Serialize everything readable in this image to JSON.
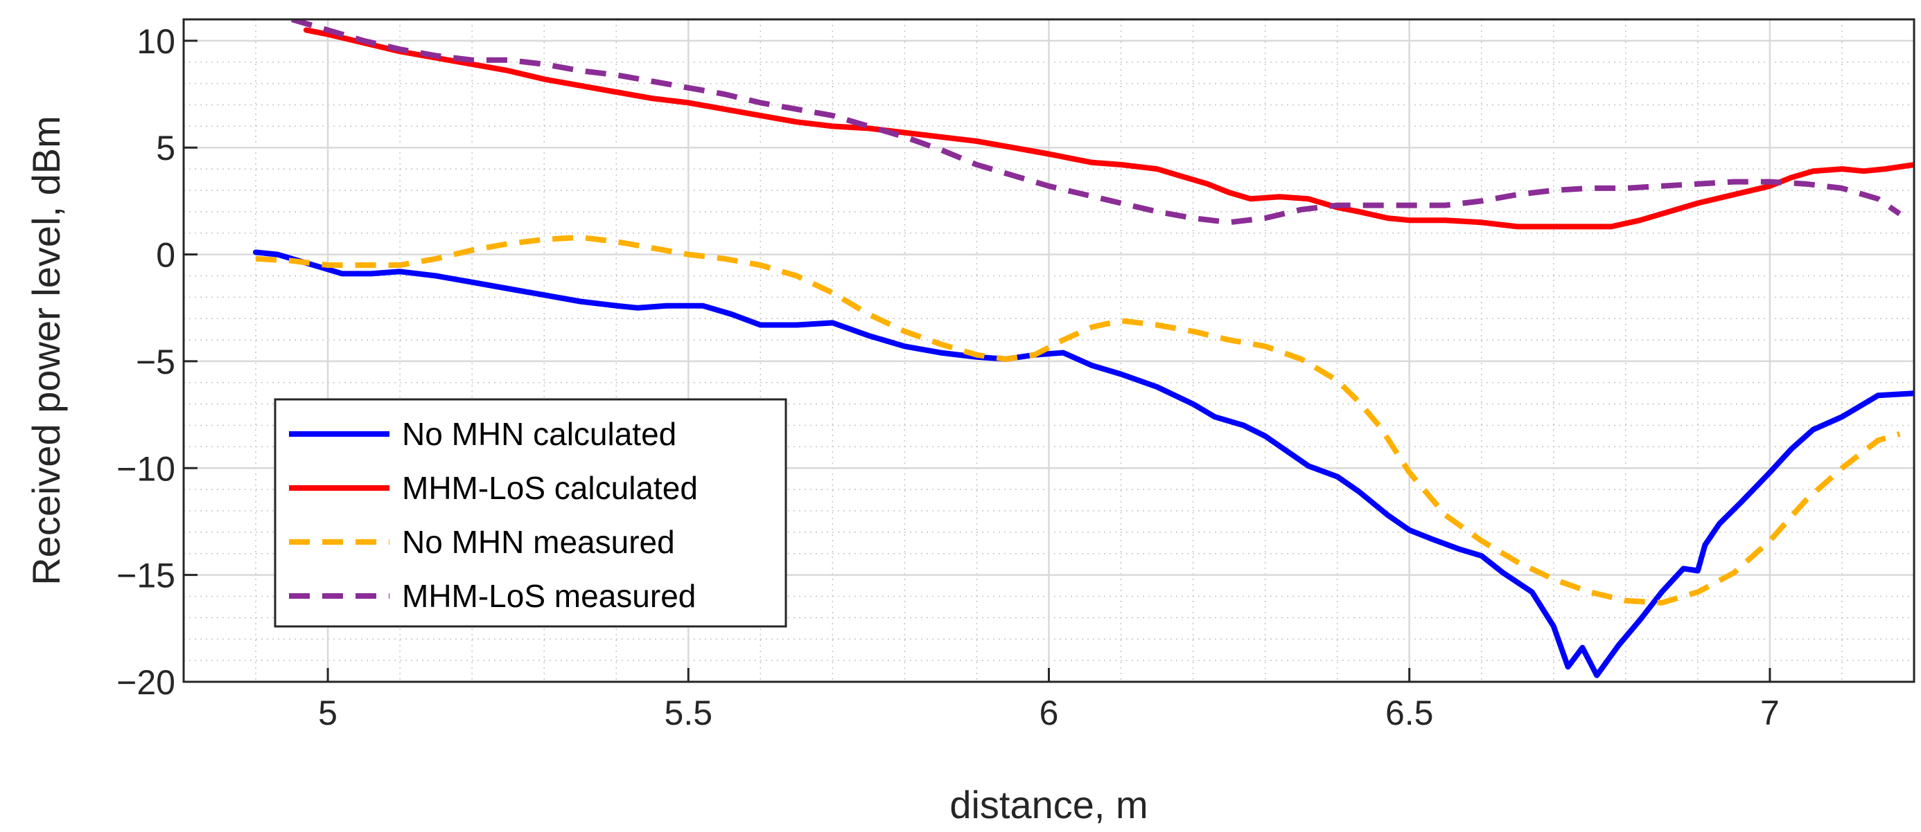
{
  "chart_data": {
    "type": "line",
    "title": "",
    "xlabel": "distance, m",
    "ylabel": "Received power level, dBm",
    "xlim": [
      4.8,
      7.2
    ],
    "ylim": [
      -20,
      11
    ],
    "xticks": [
      5,
      5.5,
      6,
      6.5,
      7
    ],
    "xtick_labels": [
      "5",
      "5.5",
      "6",
      "6.5",
      "7"
    ],
    "yticks": [
      10,
      5,
      0,
      -5,
      -10,
      -15,
      -20
    ],
    "ytick_labels": [
      "10",
      "5",
      "0",
      "−5",
      "−10",
      "−15",
      "−20"
    ],
    "grid": true,
    "minor_grid": true,
    "legend_position": "lower-left",
    "series": [
      {
        "name": "No MHN calculated",
        "color": "#0000ff",
        "style": "solid",
        "x": [
          4.9,
          4.93,
          5.0,
          5.02,
          5.06,
          5.1,
          5.15,
          5.2,
          5.25,
          5.3,
          5.35,
          5.4,
          5.43,
          5.47,
          5.52,
          5.56,
          5.6,
          5.65,
          5.7,
          5.75,
          5.8,
          5.85,
          5.9,
          5.94,
          5.98,
          6.02,
          6.06,
          6.1,
          6.15,
          6.2,
          6.23,
          6.27,
          6.3,
          6.33,
          6.36,
          6.4,
          6.43,
          6.47,
          6.5,
          6.53,
          6.57,
          6.6,
          6.63,
          6.67,
          6.7,
          6.72,
          6.74,
          6.76,
          6.79,
          6.82,
          6.85,
          6.88,
          6.9,
          6.91,
          6.93,
          6.96,
          7.0,
          7.03,
          7.06,
          7.1,
          7.13,
          7.15,
          7.2
        ],
        "values": [
          0.1,
          0.0,
          -0.7,
          -0.9,
          -0.9,
          -0.8,
          -1.0,
          -1.3,
          -1.6,
          -1.9,
          -2.2,
          -2.4,
          -2.5,
          -2.4,
          -2.4,
          -2.8,
          -3.3,
          -3.3,
          -3.2,
          -3.8,
          -4.3,
          -4.6,
          -4.8,
          -4.9,
          -4.7,
          -4.6,
          -5.2,
          -5.6,
          -6.2,
          -7.0,
          -7.6,
          -8.0,
          -8.5,
          -9.2,
          -9.9,
          -10.4,
          -11.1,
          -12.2,
          -12.9,
          -13.3,
          -13.8,
          -14.1,
          -14.9,
          -15.8,
          -17.4,
          -19.3,
          -18.4,
          -19.7,
          -18.3,
          -17.1,
          -15.8,
          -14.7,
          -14.8,
          -13.6,
          -12.6,
          -11.6,
          -10.2,
          -9.1,
          -8.2,
          -7.6,
          -7.0,
          -6.6,
          -6.5
        ]
      },
      {
        "name": "MHM-LoS calculated",
        "color": "#ff0000",
        "style": "solid",
        "x": [
          4.97,
          5.0,
          5.05,
          5.1,
          5.15,
          5.2,
          5.25,
          5.3,
          5.35,
          5.4,
          5.45,
          5.5,
          5.55,
          5.6,
          5.65,
          5.7,
          5.75,
          5.8,
          5.85,
          5.9,
          5.95,
          6.0,
          6.03,
          6.06,
          6.1,
          6.15,
          6.18,
          6.22,
          6.25,
          6.28,
          6.32,
          6.36,
          6.4,
          6.43,
          6.47,
          6.5,
          6.55,
          6.6,
          6.65,
          6.7,
          6.75,
          6.78,
          6.82,
          6.86,
          6.9,
          6.95,
          7.0,
          7.03,
          7.06,
          7.1,
          7.13,
          7.16,
          7.2
        ],
        "values": [
          10.5,
          10.3,
          9.9,
          9.5,
          9.2,
          8.9,
          8.6,
          8.2,
          7.9,
          7.6,
          7.3,
          7.1,
          6.8,
          6.5,
          6.2,
          6.0,
          5.9,
          5.7,
          5.5,
          5.3,
          5.0,
          4.7,
          4.5,
          4.3,
          4.2,
          4.0,
          3.7,
          3.3,
          2.9,
          2.6,
          2.7,
          2.6,
          2.2,
          2.0,
          1.7,
          1.6,
          1.6,
          1.5,
          1.3,
          1.3,
          1.3,
          1.3,
          1.6,
          2.0,
          2.4,
          2.8,
          3.2,
          3.6,
          3.9,
          4.0,
          3.9,
          4.0,
          4.2
        ]
      },
      {
        "name": "No MHN measured",
        "color": "#ffb000",
        "style": "dashed",
        "x": [
          4.9,
          4.95,
          5.0,
          5.05,
          5.1,
          5.15,
          5.2,
          5.25,
          5.3,
          5.35,
          5.4,
          5.45,
          5.5,
          5.55,
          5.6,
          5.65,
          5.7,
          5.75,
          5.8,
          5.85,
          5.9,
          5.94,
          5.98,
          6.02,
          6.06,
          6.1,
          6.15,
          6.2,
          6.25,
          6.3,
          6.35,
          6.4,
          6.43,
          6.46,
          6.5,
          6.55,
          6.6,
          6.65,
          6.7,
          6.75,
          6.8,
          6.85,
          6.9,
          6.95,
          7.0,
          7.05,
          7.1,
          7.15,
          7.18
        ],
        "values": [
          -0.2,
          -0.3,
          -0.5,
          -0.5,
          -0.5,
          -0.2,
          0.2,
          0.5,
          0.7,
          0.8,
          0.6,
          0.3,
          0.0,
          -0.2,
          -0.5,
          -1.0,
          -1.8,
          -2.8,
          -3.6,
          -4.2,
          -4.7,
          -4.9,
          -4.7,
          -4.0,
          -3.4,
          -3.1,
          -3.3,
          -3.6,
          -4.0,
          -4.3,
          -4.9,
          -5.9,
          -6.9,
          -8.1,
          -10.2,
          -12.2,
          -13.4,
          -14.4,
          -15.2,
          -15.8,
          -16.2,
          -16.3,
          -15.8,
          -14.9,
          -13.4,
          -11.5,
          -10.0,
          -8.7,
          -8.4
        ]
      },
      {
        "name": "MHM-LoS measured",
        "color": "#8b2d96",
        "style": "dashed",
        "x": [
          4.95,
          5.0,
          5.05,
          5.1,
          5.15,
          5.2,
          5.25,
          5.3,
          5.35,
          5.4,
          5.45,
          5.5,
          5.55,
          5.6,
          5.65,
          5.7,
          5.75,
          5.8,
          5.85,
          5.9,
          5.95,
          6.0,
          6.05,
          6.1,
          6.15,
          6.2,
          6.25,
          6.3,
          6.35,
          6.4,
          6.45,
          6.5,
          6.55,
          6.6,
          6.65,
          6.7,
          6.75,
          6.8,
          6.85,
          6.9,
          6.95,
          7.0,
          7.05,
          7.1,
          7.15,
          7.18
        ],
        "values": [
          11.0,
          10.5,
          10.0,
          9.6,
          9.3,
          9.1,
          9.1,
          8.9,
          8.6,
          8.4,
          8.1,
          7.8,
          7.5,
          7.1,
          6.8,
          6.5,
          6.0,
          5.5,
          4.9,
          4.2,
          3.7,
          3.2,
          2.8,
          2.4,
          2.0,
          1.7,
          1.5,
          1.7,
          2.1,
          2.3,
          2.3,
          2.3,
          2.3,
          2.5,
          2.8,
          3.0,
          3.1,
          3.1,
          3.2,
          3.3,
          3.4,
          3.4,
          3.3,
          3.1,
          2.6,
          1.9
        ]
      }
    ]
  }
}
